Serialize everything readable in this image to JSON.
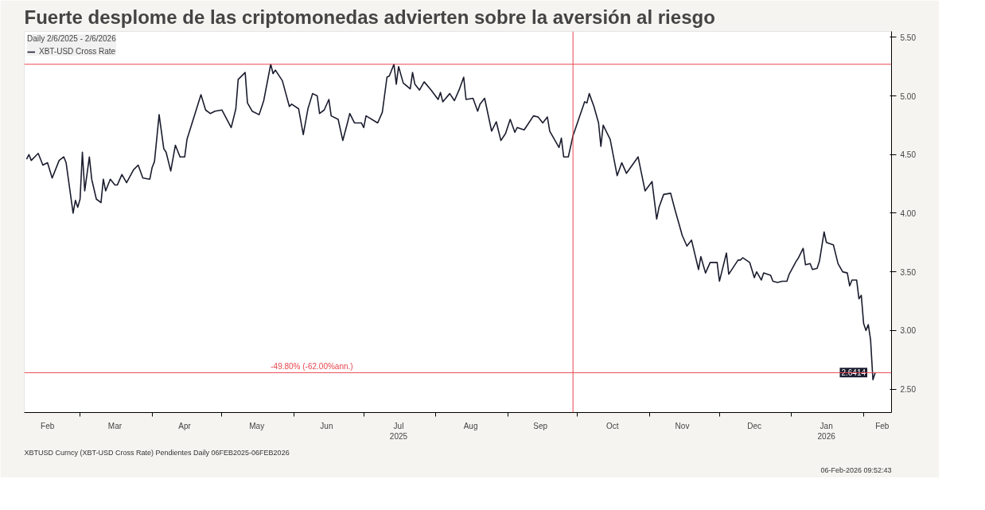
{
  "chart_data": {
    "type": "line",
    "title": "Fuerte desplome de las criptomonedas advierten sobre la aversión al riesgo",
    "legend_title": "Daily 2/6/2025 - 2/6/2026",
    "x": [
      "2025-02-06",
      "2025-02-07",
      "2025-02-08",
      "2025-02-10",
      "2025-02-11",
      "2025-02-13",
      "2025-02-15",
      "2025-02-17",
      "2025-02-20",
      "2025-02-22",
      "2025-02-23",
      "2025-02-26",
      "2025-02-27",
      "2025-02-28",
      "2025-03-01",
      "2025-03-02",
      "2025-03-03",
      "2025-03-05",
      "2025-03-06",
      "2025-03-08",
      "2025-03-10",
      "2025-03-11",
      "2025-03-12",
      "2025-03-14",
      "2025-03-16",
      "2025-03-17",
      "2025-03-19",
      "2025-03-21",
      "2025-03-24",
      "2025-03-26",
      "2025-03-28",
      "2025-03-31",
      "2025-04-01",
      "2025-04-02",
      "2025-04-04",
      "2025-04-06",
      "2025-04-07",
      "2025-04-09",
      "2025-04-11",
      "2025-04-13",
      "2025-04-15",
      "2025-04-16",
      "2025-04-22",
      "2025-04-24",
      "2025-04-26",
      "2025-04-28",
      "2025-05-01",
      "2025-05-05",
      "2025-05-07",
      "2025-05-08",
      "2025-05-11",
      "2025-05-12",
      "2025-05-14",
      "2025-05-17",
      "2025-05-19",
      "2025-05-22",
      "2025-05-23",
      "2025-05-24",
      "2025-05-27",
      "2025-05-30",
      "2025-05-31",
      "2025-06-03",
      "2025-06-05",
      "2025-06-07",
      "2025-06-09",
      "2025-06-11",
      "2025-06-12",
      "2025-06-14",
      "2025-06-16",
      "2025-06-17",
      "2025-06-20",
      "2025-06-22",
      "2025-06-24",
      "2025-06-25",
      "2025-06-27",
      "2025-06-30",
      "2025-07-01",
      "2025-07-02",
      "2025-07-07",
      "2025-07-09",
      "2025-07-11",
      "2025-07-12",
      "2025-07-14",
      "2025-07-15",
      "2025-07-16",
      "2025-07-18",
      "2025-07-21",
      "2025-07-22",
      "2025-07-23",
      "2025-07-25",
      "2025-07-27",
      "2025-07-30",
      "2025-08-02",
      "2025-08-03",
      "2025-08-04",
      "2025-08-07",
      "2025-08-09",
      "2025-08-11",
      "2025-08-13",
      "2025-08-14",
      "2025-08-17",
      "2025-08-19",
      "2025-08-20",
      "2025-08-22",
      "2025-08-25",
      "2025-08-27",
      "2025-08-29",
      "2025-08-31",
      "2025-09-02",
      "2025-09-04",
      "2025-09-05",
      "2025-09-08",
      "2025-09-10",
      "2025-09-12",
      "2025-09-14",
      "2025-09-16",
      "2025-09-18",
      "2025-09-19",
      "2025-09-23",
      "2025-09-24",
      "2025-09-25",
      "2025-09-27",
      "2025-09-29",
      "2025-10-04",
      "2025-10-05",
      "2025-10-06",
      "2025-10-08",
      "2025-10-10",
      "2025-10-11",
      "2025-10-12",
      "2025-10-15",
      "2025-10-18",
      "2025-10-20",
      "2025-10-22",
      "2025-10-27",
      "2025-10-30",
      "2025-11-02",
      "2025-11-04",
      "2025-11-05",
      "2025-11-07",
      "2025-11-10",
      "2025-11-12",
      "2025-11-13",
      "2025-11-15",
      "2025-11-17",
      "2025-11-19",
      "2025-11-22",
      "2025-11-23",
      "2025-11-25",
      "2025-11-27",
      "2025-11-30",
      "2025-12-01",
      "2025-12-04",
      "2025-12-05",
      "2025-12-09",
      "2025-12-10",
      "2025-12-11",
      "2025-12-14",
      "2025-12-16",
      "2025-12-17",
      "2025-12-19",
      "2025-12-20",
      "2025-12-23",
      "2025-12-24",
      "2025-12-26",
      "2025-12-28",
      "2025-12-30",
      "2025-12-31",
      "2026-01-03",
      "2026-01-04",
      "2026-01-06",
      "2026-01-07",
      "2026-01-09",
      "2026-01-10",
      "2026-01-12",
      "2026-01-13",
      "2026-01-15",
      "2026-01-16",
      "2026-01-19",
      "2026-01-21",
      "2026-01-23",
      "2026-01-25",
      "2026-01-26",
      "2026-01-27",
      "2026-01-29",
      "2026-01-30",
      "2026-01-31",
      "2026-02-01",
      "2026-02-02",
      "2026-02-03",
      "2026-02-04",
      "2026-02-05",
      "2026-02-06"
    ],
    "series": [
      {
        "name": "XBT-USD Cross Rate",
        "color": "#1a1c2e",
        "values": [
          4.46,
          4.5,
          4.45,
          4.49,
          4.51,
          4.41,
          4.43,
          4.3,
          4.45,
          4.48,
          4.43,
          4.0,
          4.11,
          4.05,
          4.12,
          4.52,
          4.19,
          4.48,
          4.29,
          4.12,
          4.09,
          4.29,
          4.19,
          4.29,
          4.24,
          4.24,
          4.33,
          4.26,
          4.37,
          4.41,
          4.3,
          4.29,
          4.39,
          4.44,
          4.84,
          4.55,
          4.52,
          4.36,
          4.58,
          4.48,
          4.48,
          4.63,
          5.01,
          4.88,
          4.85,
          4.87,
          4.88,
          4.73,
          4.89,
          5.14,
          5.2,
          4.94,
          4.87,
          4.84,
          4.96,
          5.27,
          5.19,
          5.22,
          5.13,
          4.91,
          4.93,
          4.89,
          4.67,
          4.89,
          5.02,
          5.0,
          4.85,
          4.88,
          4.97,
          4.83,
          4.8,
          4.62,
          4.77,
          4.85,
          4.77,
          4.77,
          4.73,
          4.83,
          4.77,
          4.86,
          5.16,
          5.17,
          5.27,
          5.1,
          5.25,
          5.11,
          5.06,
          5.2,
          5.1,
          5.05,
          5.12,
          5.05,
          4.97,
          5.03,
          4.95,
          5.02,
          4.96,
          5.05,
          5.16,
          4.97,
          4.98,
          4.87,
          4.93,
          4.98,
          4.7,
          4.78,
          4.62,
          4.68,
          4.8,
          4.69,
          4.73,
          4.71,
          4.77,
          4.83,
          4.82,
          4.77,
          4.82,
          4.7,
          4.56,
          4.64,
          4.48,
          4.48,
          4.66,
          4.95,
          4.94,
          5.02,
          4.91,
          4.77,
          4.57,
          4.75,
          4.63,
          4.32,
          4.43,
          4.34,
          4.48,
          4.19,
          4.27,
          3.95,
          4.05,
          4.16,
          4.17,
          4.02,
          3.95,
          3.81,
          3.72,
          3.77,
          3.52,
          3.63,
          3.49,
          3.58,
          3.58,
          3.42,
          3.66,
          3.48,
          3.6,
          3.6,
          3.62,
          3.58,
          3.45,
          3.5,
          3.43,
          3.49,
          3.47,
          3.42,
          3.41,
          3.42,
          3.42,
          3.48,
          3.59,
          3.62,
          3.7,
          3.56,
          3.57,
          3.52,
          3.53,
          3.59,
          3.84,
          3.75,
          3.73,
          3.57,
          3.5,
          3.49,
          3.38,
          3.43,
          3.43,
          3.27,
          3.3,
          3.06,
          3.0,
          3.05,
          2.92,
          2.58,
          2.6414
        ],
        "value_labels": [
          null,
          null,
          null,
          null,
          null,
          null,
          null,
          null,
          null,
          null,
          null,
          null,
          null,
          null,
          null,
          null,
          null,
          null,
          null,
          null,
          null,
          null,
          null,
          null,
          null,
          null,
          null,
          null,
          null,
          null,
          null,
          null,
          null,
          null,
          null,
          null,
          null,
          null,
          null,
          null,
          null,
          null,
          null,
          null,
          null,
          null,
          null,
          null,
          null,
          null,
          null,
          null,
          null,
          null,
          null,
          null,
          null,
          null,
          null,
          null,
          null,
          null,
          null,
          null,
          null,
          null,
          null,
          null,
          null,
          null,
          null,
          null,
          null,
          null,
          null,
          null,
          null,
          null,
          null,
          null,
          null,
          null,
          null,
          null,
          null,
          null,
          null,
          null,
          null,
          null,
          null,
          null,
          null,
          null,
          null,
          null,
          null,
          null,
          null,
          null,
          null,
          null,
          null,
          null,
          null,
          null,
          null,
          null,
          null,
          null,
          null,
          null,
          null,
          null,
          null,
          null,
          null,
          null,
          null,
          null,
          null,
          null,
          null,
          null,
          null,
          null,
          null,
          null,
          null,
          null,
          null,
          null,
          null,
          null,
          null,
          null,
          null,
          null,
          null,
          null,
          null,
          null,
          null,
          null,
          null,
          null,
          null,
          null,
          null,
          null,
          null,
          null,
          null,
          null,
          null,
          null,
          null,
          null,
          null,
          null,
          null,
          null,
          null,
          null,
          null,
          null,
          null,
          null,
          null,
          null,
          null,
          null,
          null,
          null,
          null,
          null,
          null,
          null,
          null,
          null,
          null,
          null,
          null,
          null,
          null,
          null,
          null,
          null,
          null,
          null,
          null,
          null,
          "2.6414"
        ]
      }
    ],
    "xlim": [
      "2025-02-05",
      "2026-02-13"
    ],
    "xticks": [
      {
        "value": "2025-02-15",
        "label": "Feb"
      },
      {
        "value": "2025-03-01",
        "label": null
      },
      {
        "value": "2025-03-16",
        "label": "Mar"
      },
      {
        "value": "2025-04-01",
        "label": null
      },
      {
        "value": "2025-04-15",
        "label": "Apr"
      },
      {
        "value": "2025-05-01",
        "label": null
      },
      {
        "value": "2025-05-16",
        "label": "May"
      },
      {
        "value": "2025-06-01",
        "label": null
      },
      {
        "value": "2025-06-15",
        "label": "Jun"
      },
      {
        "value": "2025-07-01",
        "label": null
      },
      {
        "value": "2025-07-16",
        "label": "Jul\n2025"
      },
      {
        "value": "2025-08-01",
        "label": null
      },
      {
        "value": "2025-08-16",
        "label": "Aug"
      },
      {
        "value": "2025-09-01",
        "label": null
      },
      {
        "value": "2025-09-15",
        "label": "Sep"
      },
      {
        "value": "2025-10-01",
        "label": null
      },
      {
        "value": "2025-10-16",
        "label": "Oct"
      },
      {
        "value": "2025-11-01",
        "label": null
      },
      {
        "value": "2025-11-15",
        "label": "Nov"
      },
      {
        "value": "2025-12-01",
        "label": null
      },
      {
        "value": "2025-12-16",
        "label": "Dec"
      },
      {
        "value": "2026-01-01",
        "label": null
      },
      {
        "value": "2026-01-16",
        "label": "Jan\n2026"
      },
      {
        "value": "2026-02-01",
        "label": null
      },
      {
        "value": "2026-02-09",
        "label": "Feb"
      }
    ],
    "ylim": [
      2.3,
      5.55
    ],
    "yticks": [
      {
        "value": 2.5,
        "label": "2.50"
      },
      {
        "value": 3.0,
        "label": "3.00"
      },
      {
        "value": 3.5,
        "label": "3.50"
      },
      {
        "value": 4.0,
        "label": "4.00"
      },
      {
        "value": 4.5,
        "label": "4.50"
      },
      {
        "value": 5.0,
        "label": "5.00"
      },
      {
        "value": 5.5,
        "label": "5.50"
      }
    ],
    "ref_lines": [
      {
        "axis": "y",
        "value": 5.27,
        "color": "#e8474f"
      },
      {
        "axis": "y",
        "value": 2.64,
        "color": "#e8474f",
        "label": "-49.80% (-62.00%ann.)"
      },
      {
        "axis": "x",
        "value": "2025-09-29",
        "color": "#e8474f"
      }
    ],
    "annotations": [
      "XBTUSD Curncy (XBT-USD Cross Rate) Pendientes Daily 06FEB2025-06FEB2026",
      "06-Feb-2026 09:52:43"
    ],
    "legend": "top left",
    "grid": false,
    "line_style": "solid",
    "marker": "none"
  }
}
